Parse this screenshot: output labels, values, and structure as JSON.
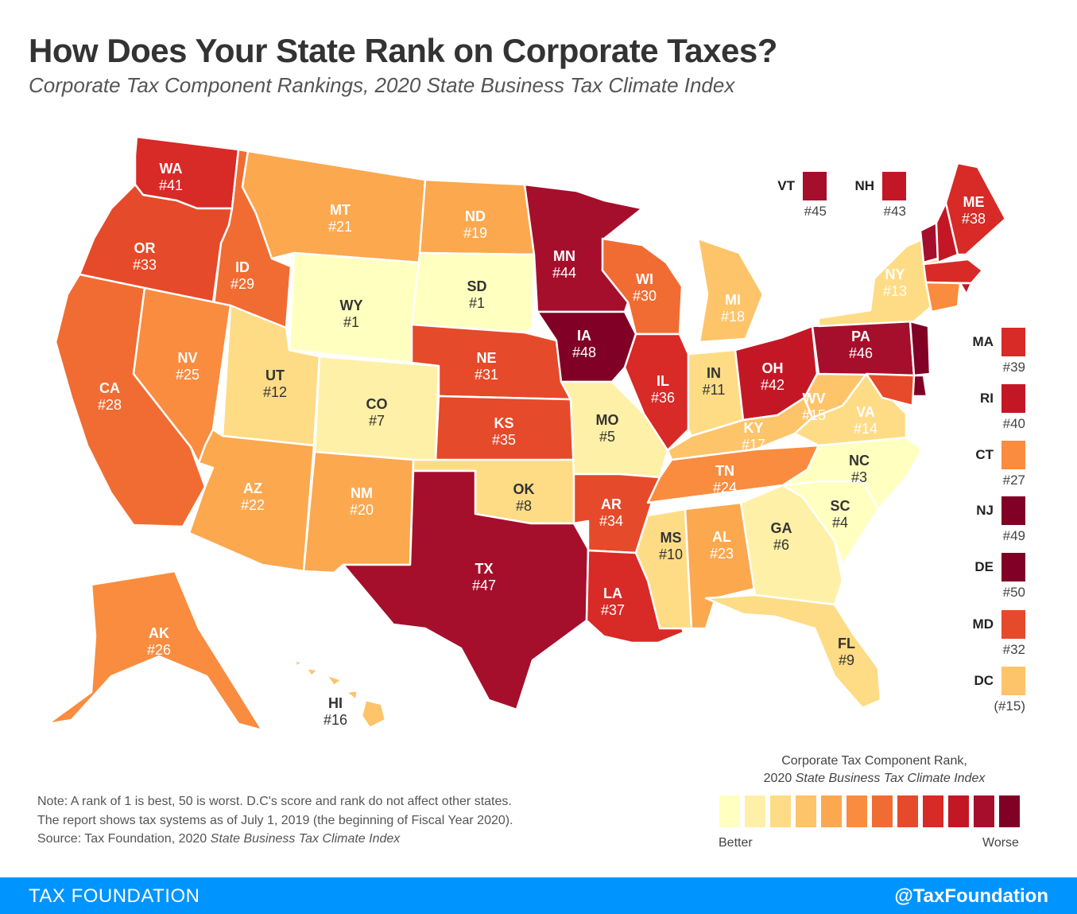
{
  "header": {
    "title": "How Does Your State Rank on Corporate Taxes?",
    "subtitle": "Corporate Tax Component Rankings, 2020 State Business Tax Climate Index"
  },
  "colors": {
    "scale": [
      "#ffffc0",
      "#fff0a8",
      "#fedc86",
      "#fdc46a",
      "#fca84f",
      "#f98c3f",
      "#f16c33",
      "#e54a2a",
      "#d82a26",
      "#c41726",
      "#a50f2c",
      "#800026"
    ]
  },
  "states": {
    "WA": {
      "rank": "#41",
      "color_idx": 8
    },
    "OR": {
      "rank": "#33",
      "color_idx": 7
    },
    "CA": {
      "rank": "#28",
      "color_idx": 6
    },
    "ID": {
      "rank": "#29",
      "color_idx": 6
    },
    "NV": {
      "rank": "#25",
      "color_idx": 5
    },
    "MT": {
      "rank": "#21",
      "color_idx": 4
    },
    "WY": {
      "rank": "#1",
      "color_idx": 0
    },
    "UT": {
      "rank": "#12",
      "color_idx": 2
    },
    "AZ": {
      "rank": "#22",
      "color_idx": 4
    },
    "CO": {
      "rank": "#7",
      "color_idx": 1
    },
    "NM": {
      "rank": "#20",
      "color_idx": 4
    },
    "ND": {
      "rank": "#19",
      "color_idx": 4
    },
    "SD": {
      "rank": "#1",
      "color_idx": 0
    },
    "NE": {
      "rank": "#31",
      "color_idx": 7
    },
    "KS": {
      "rank": "#35",
      "color_idx": 7
    },
    "OK": {
      "rank": "#8",
      "color_idx": 2
    },
    "TX": {
      "rank": "#47",
      "color_idx": 10
    },
    "MN": {
      "rank": "#44",
      "color_idx": 10
    },
    "IA": {
      "rank": "#48",
      "color_idx": 11
    },
    "MO": {
      "rank": "#5",
      "color_idx": 1
    },
    "AR": {
      "rank": "#34",
      "color_idx": 7
    },
    "LA": {
      "rank": "#37",
      "color_idx": 8
    },
    "WI": {
      "rank": "#30",
      "color_idx": 6
    },
    "IL": {
      "rank": "#36",
      "color_idx": 8
    },
    "MI": {
      "rank": "#18",
      "color_idx": 3
    },
    "IN": {
      "rank": "#11",
      "color_idx": 2
    },
    "OH": {
      "rank": "#42",
      "color_idx": 9
    },
    "KY": {
      "rank": "#17",
      "color_idx": 3
    },
    "TN": {
      "rank": "#24",
      "color_idx": 5
    },
    "MS": {
      "rank": "#10",
      "color_idx": 2
    },
    "AL": {
      "rank": "#23",
      "color_idx": 4
    },
    "GA": {
      "rank": "#6",
      "color_idx": 1
    },
    "FL": {
      "rank": "#9",
      "color_idx": 2
    },
    "SC": {
      "rank": "#4",
      "color_idx": 0
    },
    "NC": {
      "rank": "#3",
      "color_idx": 0
    },
    "VA": {
      "rank": "#14",
      "color_idx": 2
    },
    "WV": {
      "rank": "#15",
      "color_idx": 3
    },
    "PA": {
      "rank": "#46",
      "color_idx": 10
    },
    "NY": {
      "rank": "#13",
      "color_idx": 2
    },
    "ME": {
      "rank": "#38",
      "color_idx": 8
    },
    "AK": {
      "rank": "#26",
      "color_idx": 5
    },
    "HI": {
      "rank": "#16",
      "color_idx": 3
    },
    "VT": {
      "rank": "#45",
      "color_idx": 10
    },
    "NH": {
      "rank": "#43",
      "color_idx": 9
    },
    "MA": {
      "rank": "#39",
      "color_idx": 8
    },
    "RI": {
      "rank": "#40",
      "color_idx": 9
    },
    "CT": {
      "rank": "#27",
      "color_idx": 5
    },
    "NJ": {
      "rank": "#49",
      "color_idx": 11
    },
    "DE": {
      "rank": "#50",
      "color_idx": 11
    },
    "MD": {
      "rank": "#32",
      "color_idx": 7
    },
    "DC": {
      "rank": "(#15)",
      "color_idx": 3
    }
  },
  "small_keys": {
    "VT": {
      "label": "VT",
      "rank": "#45"
    },
    "NH": {
      "label": "NH",
      "rank": "#43"
    },
    "MA": {
      "label": "MA",
      "rank": "#39"
    },
    "RI": {
      "label": "RI",
      "rank": "#40"
    },
    "CT": {
      "label": "CT",
      "rank": "#27"
    },
    "NJ": {
      "label": "NJ",
      "rank": "#49"
    },
    "DE": {
      "label": "DE",
      "rank": "#50"
    },
    "MD": {
      "label": "MD",
      "rank": "#32"
    },
    "DC": {
      "label": "DC",
      "rank": "(#15)"
    }
  },
  "legend": {
    "title_line1": "Corporate Tax Component Rank,",
    "title_line2_prefix": "2020 ",
    "title_line2_italic": "State Business Tax Climate Index",
    "better": "Better",
    "worse": "Worse"
  },
  "notes": {
    "line1": "Note: A rank of 1 is best, 50 is worst. D.C's score and rank do not affect other states.",
    "line2": "The report shows tax systems as of July 1, 2019 (the beginning of Fiscal Year 2020).",
    "source_prefix": "Source: Tax Foundation, 2020 ",
    "source_italic": "State Business Tax Climate Index"
  },
  "footer": {
    "left": "TAX FOUNDATION",
    "right": "@TaxFoundation"
  }
}
